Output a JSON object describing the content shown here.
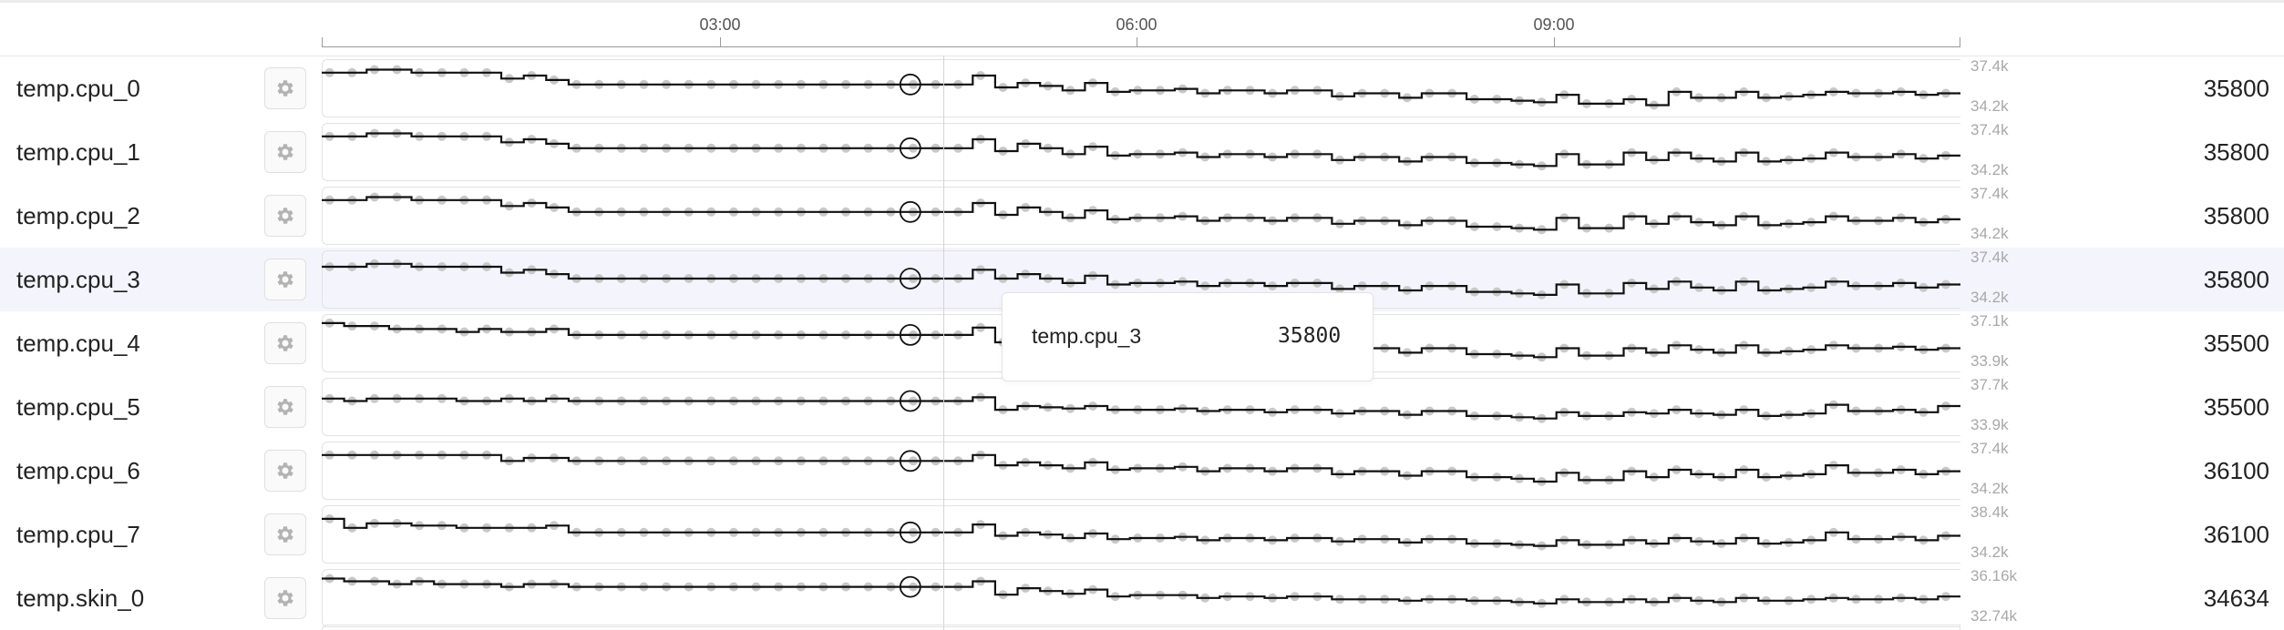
{
  "timeline": {
    "ticks": [
      {
        "label": "03:00",
        "hour": 3
      },
      {
        "label": "06:00",
        "hour": 6
      },
      {
        "label": "09:00",
        "hour": 9
      }
    ],
    "start_hour": 0.13,
    "end_hour": 11.93,
    "cursor_hour": 4.48
  },
  "icons": {
    "settings": "gear-icon"
  },
  "colors": {
    "line": "#111111",
    "dot": "#c8c8c8",
    "highlight": "#f4f4fd"
  },
  "highlighted_row": "temp.cpu_3",
  "tooltip": {
    "name": "temp.cpu_3",
    "value": "35800"
  },
  "rows": [
    {
      "name": "temp.cpu_0",
      "value": "35800",
      "y_max": "37.4k",
      "y_min": "34.2k",
      "y_range": [
        34200,
        37400
      ],
      "samples": [
        36800,
        36800,
        37000,
        37000,
        36800,
        36800,
        36800,
        36800,
        36400,
        36600,
        36300,
        36000,
        36000,
        36000,
        36000,
        36000,
        36000,
        36000,
        36000,
        36000,
        36000,
        36000,
        36000,
        36000,
        36000,
        36000,
        36000,
        36000,
        36000,
        36600,
        35800,
        36100,
        35900,
        35600,
        36100,
        35500,
        35600,
        35600,
        35700,
        35400,
        35600,
        35600,
        35400,
        35600,
        35600,
        35200,
        35400,
        35400,
        35100,
        35400,
        35400,
        35000,
        35000,
        34900,
        34800,
        35300,
        34700,
        34700,
        35000,
        34600,
        35500,
        35100,
        35100,
        35500,
        35100,
        35200,
        35300,
        35500,
        35400,
        35400,
        35500,
        35300,
        35400
      ]
    },
    {
      "name": "temp.cpu_1",
      "value": "35800",
      "y_max": "37.4k",
      "y_min": "34.2k",
      "y_range": [
        34200,
        37400
      ],
      "samples": [
        36800,
        36800,
        37000,
        37000,
        36800,
        36800,
        36800,
        36800,
        36400,
        36600,
        36300,
        36000,
        36000,
        36000,
        36000,
        36000,
        36000,
        36000,
        36000,
        36000,
        36000,
        36000,
        36000,
        36000,
        36000,
        36000,
        36000,
        36000,
        36000,
        36600,
        35800,
        36300,
        36000,
        35600,
        36100,
        35500,
        35600,
        35600,
        35700,
        35400,
        35600,
        35600,
        35400,
        35600,
        35600,
        35200,
        35400,
        35400,
        35100,
        35400,
        35400,
        35000,
        35000,
        34900,
        34800,
        35600,
        34900,
        34900,
        35700,
        35200,
        35700,
        35300,
        35100,
        35700,
        35100,
        35200,
        35300,
        35700,
        35400,
        35400,
        35600,
        35300,
        35500
      ]
    },
    {
      "name": "temp.cpu_2",
      "value": "35800",
      "y_max": "37.4k",
      "y_min": "34.2k",
      "y_range": [
        34200,
        37400
      ],
      "samples": [
        36800,
        36800,
        37000,
        37000,
        36800,
        36800,
        36800,
        36800,
        36400,
        36600,
        36300,
        36000,
        36000,
        36000,
        36000,
        36000,
        36000,
        36000,
        36000,
        36000,
        36000,
        36000,
        36000,
        36000,
        36000,
        36000,
        36000,
        36000,
        36000,
        36600,
        35800,
        36300,
        36000,
        35600,
        36100,
        35500,
        35600,
        35600,
        35700,
        35400,
        35600,
        35600,
        35400,
        35600,
        35600,
        35200,
        35400,
        35400,
        35100,
        35400,
        35400,
        35000,
        35000,
        34900,
        34800,
        35600,
        34900,
        34900,
        35700,
        35200,
        35700,
        35300,
        35100,
        35700,
        35100,
        35200,
        35300,
        35700,
        35400,
        35400,
        35600,
        35300,
        35500
      ]
    },
    {
      "name": "temp.cpu_3",
      "value": "35800",
      "y_max": "37.4k",
      "y_min": "34.2k",
      "y_range": [
        34200,
        37400
      ],
      "samples": [
        36600,
        36600,
        36800,
        36800,
        36600,
        36600,
        36600,
        36600,
        36200,
        36400,
        36100,
        35800,
        35800,
        35800,
        35800,
        35800,
        35800,
        35800,
        35800,
        35800,
        35800,
        35800,
        35800,
        35800,
        35800,
        35800,
        35800,
        35800,
        35800,
        36400,
        35800,
        36100,
        35800,
        35500,
        36000,
        35400,
        35500,
        35500,
        35600,
        35300,
        35500,
        35500,
        35300,
        35500,
        35500,
        35100,
        35300,
        35300,
        35000,
        35300,
        35300,
        34900,
        34900,
        34800,
        34700,
        35400,
        34800,
        34800,
        35500,
        35100,
        35600,
        35200,
        35000,
        35600,
        35000,
        35100,
        35200,
        35600,
        35300,
        35300,
        35500,
        35200,
        35400
      ]
    },
    {
      "name": "temp.cpu_4",
      "value": "35500",
      "y_max": "37.1k",
      "y_min": "33.9k",
      "y_range": [
        33900,
        37100
      ],
      "samples": [
        36800,
        36600,
        36600,
        36400,
        36400,
        36400,
        36200,
        36400,
        36200,
        36200,
        36400,
        36000,
        36000,
        36000,
        36000,
        36000,
        36000,
        36000,
        36000,
        36000,
        36000,
        36000,
        36000,
        36000,
        36000,
        36000,
        36000,
        36000,
        36000,
        36500,
        35500,
        35900,
        35700,
        35300,
        35700,
        35300,
        35300,
        35300,
        35400,
        35200,
        35300,
        35300,
        35200,
        35300,
        35300,
        34900,
        35100,
        35100,
        34800,
        35100,
        35100,
        34700,
        34700,
        34600,
        34500,
        35100,
        34600,
        34600,
        35100,
        34800,
        35300,
        35000,
        34800,
        35300,
        34800,
        34900,
        35000,
        35300,
        35100,
        35100,
        35200,
        35000,
        35100
      ]
    },
    {
      "name": "temp.cpu_5",
      "value": "35500",
      "y_max": "37.7k",
      "y_min": "33.9k",
      "y_range": [
        33900,
        37700
      ],
      "samples": [
        36400,
        36200,
        36400,
        36400,
        36400,
        36400,
        36200,
        36200,
        36400,
        36200,
        36400,
        36200,
        36200,
        36200,
        36200,
        36200,
        36200,
        36200,
        36200,
        36200,
        36200,
        36200,
        36200,
        36200,
        36200,
        36200,
        36200,
        36200,
        36200,
        36500,
        35500,
        35800,
        35700,
        35600,
        35800,
        35500,
        35500,
        35500,
        35600,
        35400,
        35500,
        35500,
        35300,
        35500,
        35500,
        35200,
        35400,
        35400,
        35100,
        35400,
        35400,
        35000,
        35000,
        34900,
        34800,
        35300,
        35000,
        35000,
        35300,
        35200,
        35500,
        35200,
        35100,
        35500,
        35000,
        35100,
        35200,
        35900,
        35400,
        35400,
        35500,
        35300,
        35800
      ]
    },
    {
      "name": "temp.cpu_6",
      "value": "36100",
      "y_max": "37.4k",
      "y_min": "34.2k",
      "y_range": [
        34200,
        37400
      ],
      "samples": [
        36800,
        36800,
        36800,
        36800,
        36800,
        36800,
        36800,
        36800,
        36400,
        36600,
        36600,
        36400,
        36400,
        36400,
        36400,
        36400,
        36400,
        36400,
        36400,
        36400,
        36400,
        36400,
        36400,
        36400,
        36400,
        36400,
        36400,
        36400,
        36400,
        36800,
        36100,
        36300,
        36100,
        35900,
        36300,
        35800,
        35900,
        35900,
        36000,
        35700,
        35900,
        35900,
        35700,
        35900,
        35900,
        35500,
        35700,
        35700,
        35400,
        35700,
        35700,
        35300,
        35300,
        35200,
        35000,
        35600,
        35100,
        35100,
        35700,
        35300,
        35800,
        35500,
        35300,
        35800,
        35300,
        35400,
        35500,
        36100,
        35600,
        35600,
        35800,
        35500,
        35700
      ]
    },
    {
      "name": "temp.cpu_7",
      "value": "36100",
      "y_max": "38.4k",
      "y_min": "34.2k",
      "y_range": [
        34200,
        38400
      ],
      "samples": [
        37600,
        36800,
        37200,
        37200,
        37000,
        37000,
        36800,
        36800,
        36800,
        36800,
        37000,
        36400,
        36400,
        36400,
        36400,
        36400,
        36400,
        36400,
        36400,
        36400,
        36400,
        36400,
        36400,
        36400,
        36400,
        36400,
        36400,
        36400,
        36400,
        37100,
        36100,
        36400,
        36200,
        35900,
        36300,
        35800,
        35900,
        35900,
        36000,
        35700,
        35900,
        35900,
        35700,
        35900,
        35900,
        35600,
        35800,
        35800,
        35500,
        35800,
        35800,
        35400,
        35400,
        35300,
        35200,
        35700,
        35300,
        35300,
        35700,
        35400,
        35900,
        35600,
        35400,
        35900,
        35400,
        35500,
        35700,
        36400,
        35800,
        35800,
        36000,
        35700,
        36100
      ]
    },
    {
      "name": "temp.skin_0",
      "value": "34634",
      "y_max": "36.16k",
      "y_min": "32.74k",
      "y_range": [
        32740,
        36160
      ],
      "samples": [
        35800,
        35600,
        35600,
        35400,
        35600,
        35400,
        35400,
        35400,
        35200,
        35400,
        35400,
        35200,
        35200,
        35200,
        35200,
        35200,
        35200,
        35200,
        35200,
        35200,
        35200,
        35200,
        35200,
        35200,
        35200,
        35200,
        35200,
        35200,
        35200,
        35600,
        34634,
        35100,
        34900,
        34700,
        35000,
        34500,
        34600,
        34600,
        34600,
        34400,
        34500,
        34500,
        34400,
        34500,
        34500,
        34300,
        34300,
        34300,
        34200,
        34300,
        34300,
        34200,
        34200,
        34100,
        34000,
        34300,
        34100,
        34100,
        34300,
        34100,
        34400,
        34200,
        34100,
        34400,
        34200,
        34200,
        34300,
        34400,
        34300,
        34300,
        34400,
        34300,
        34500
      ]
    }
  ]
}
